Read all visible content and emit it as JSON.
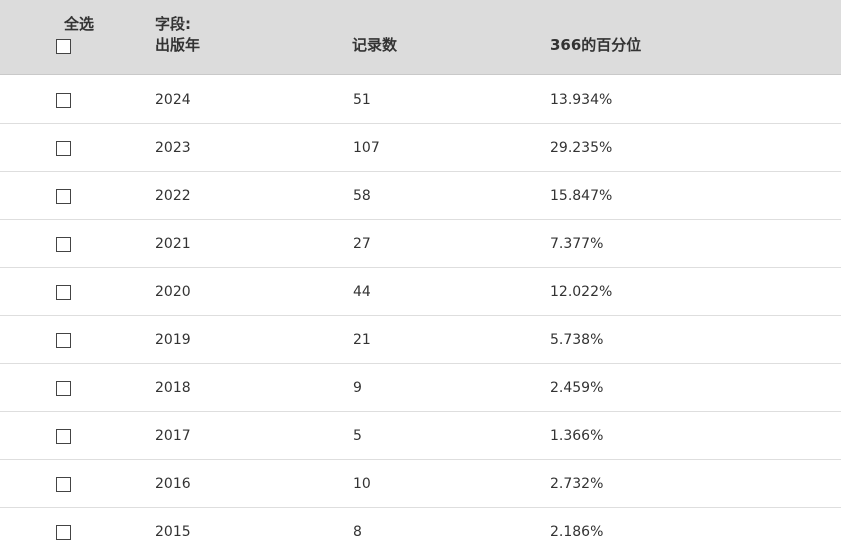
{
  "header": {
    "select_all_label": "全选",
    "field_label_line1": "字段:",
    "field_label_line2": "出版年",
    "count_label": "记录数",
    "percent_label": "366的百分位"
  },
  "rows": [
    {
      "year": "2024",
      "count": "51",
      "percent": "13.934%"
    },
    {
      "year": "2023",
      "count": "107",
      "percent": "29.235%"
    },
    {
      "year": "2022",
      "count": "58",
      "percent": "15.847%"
    },
    {
      "year": "2021",
      "count": "27",
      "percent": "7.377%"
    },
    {
      "year": "2020",
      "count": "44",
      "percent": "12.022%"
    },
    {
      "year": "2019",
      "count": "21",
      "percent": "5.738%"
    },
    {
      "year": "2018",
      "count": "9",
      "percent": "2.459%"
    },
    {
      "year": "2017",
      "count": "5",
      "percent": "1.366%"
    },
    {
      "year": "2016",
      "count": "10",
      "percent": "2.732%"
    },
    {
      "year": "2015",
      "count": "8",
      "percent": "2.186%"
    }
  ]
}
